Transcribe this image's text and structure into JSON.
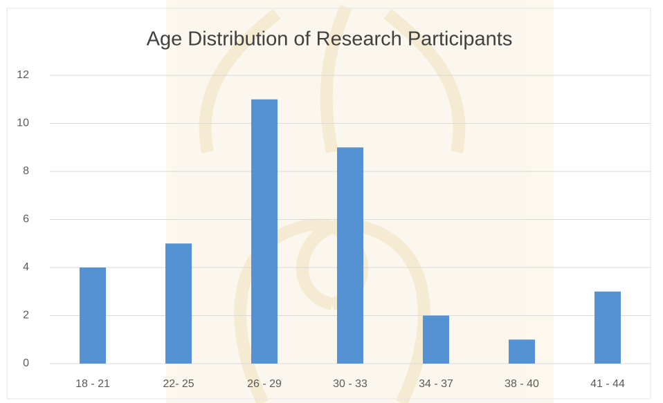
{
  "chart_data": {
    "type": "bar",
    "title": "Age Distribution of Research Participants",
    "categories": [
      "18 - 21",
      "22- 25",
      "26 - 29",
      "30 - 33",
      "34 - 37",
      "38 - 40",
      "41 - 44"
    ],
    "values": [
      4,
      5,
      11,
      9,
      2,
      1,
      3
    ],
    "color": "#5592d3",
    "ylim": [
      0,
      12
    ],
    "yticks": [
      0,
      2,
      4,
      6,
      8,
      10,
      12
    ],
    "grid": true
  }
}
